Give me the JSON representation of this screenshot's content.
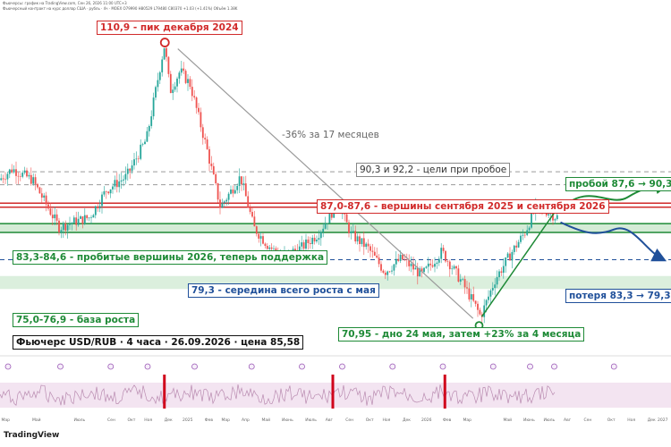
{
  "header": {
    "line1": "Фьючерсы: график на TradingView.com, Сен 26, 2026 11:00 UTC+3",
    "line2": "Фьючерсный контракт на курс доллар США · рубль · 4ч · MOEX  O79990  H80529  L79480  C80370  +1.03 (+1.41%)  Объём 1.38K"
  },
  "annotations": {
    "peak": "110,9 - пик декабря 2024",
    "drop": "-36% за 17 месяцев",
    "targets": "90,3 и 92,2 - цели при пробое",
    "resistance": "87,0-87,6 - вершины сентября 2025 и сентября 2026",
    "breakout": "пробой 87,6 → 90,3",
    "support": "83,3-84,6 - пробитые вершины 2026, теперь поддержка",
    "middle": "79,3 - середина всего роста с мая",
    "loss": "потеря 83,3 → 79,3",
    "base": "75,0-76,9 - база роста",
    "info": "Фьючерс USD/RUB · 4 часа · 26.09.2026 · цена 85,58",
    "bottom": "70,95 - дно 24 мая, затем +23% за 4 месяца"
  },
  "time_axis": [
    {
      "label": "Мар",
      "pos": 0.002
    },
    {
      "label": "Май",
      "pos": 0.048
    },
    {
      "label": "Июль",
      "pos": 0.11
    },
    {
      "label": "Сен",
      "pos": 0.16
    },
    {
      "label": "Окт",
      "pos": 0.19
    },
    {
      "label": "Ноя",
      "pos": 0.215
    },
    {
      "label": "Дек",
      "pos": 0.245
    },
    {
      "label": "2025",
      "pos": 0.272
    },
    {
      "label": "Фев",
      "pos": 0.305
    },
    {
      "label": "Мар",
      "pos": 0.33
    },
    {
      "label": "Апр",
      "pos": 0.36
    },
    {
      "label": "Май",
      "pos": 0.39
    },
    {
      "label": "Июнь",
      "pos": 0.42
    },
    {
      "label": "Июль",
      "pos": 0.455
    },
    {
      "label": "Авг",
      "pos": 0.485
    },
    {
      "label": "Сен",
      "pos": 0.515
    },
    {
      "label": "Окт",
      "pos": 0.545
    },
    {
      "label": "Ноя",
      "pos": 0.57
    },
    {
      "label": "Дек",
      "pos": 0.6
    },
    {
      "label": "2026",
      "pos": 0.628
    },
    {
      "label": "Фев",
      "pos": 0.66
    },
    {
      "label": "Мар",
      "pos": 0.69
    },
    {
      "label": "Май",
      "pos": 0.75
    },
    {
      "label": "Июнь",
      "pos": 0.78
    },
    {
      "label": "Июль",
      "pos": 0.81
    },
    {
      "label": "Авг",
      "pos": 0.84
    },
    {
      "label": "Сен",
      "pos": 0.87
    },
    {
      "label": "Окт",
      "pos": 0.905
    },
    {
      "label": "Ноя",
      "pos": 0.935
    },
    {
      "label": "Дек",
      "pos": 0.965
    },
    {
      "label": "2027",
      "pos": 0.99
    }
  ],
  "logo": "TradingView",
  "colors": {
    "red": "#d12a2a",
    "green": "#1e8a36",
    "blue": "#20509a",
    "up": "#26a69a",
    "down": "#ef5350",
    "support_zone": "#cfe9d2",
    "oscillator_band": "#f3e4f1"
  },
  "chart_data": {
    "type": "candlestick",
    "ylim": [
      69,
      111.5
    ],
    "levels": {
      "peak": 110.9,
      "target_1": 92.2,
      "target_2": 90.3,
      "resistance_low": 87.0,
      "resistance_high": 87.6,
      "support_low": 83.3,
      "support_high": 84.6,
      "middle": 79.3,
      "base_low": 75.0,
      "base_high": 76.9,
      "bottom": 70.95,
      "last_price": 85.58
    },
    "path": [
      {
        "t": 0.0,
        "v": 91.0
      },
      {
        "t": 0.02,
        "v": 92.6
      },
      {
        "t": 0.05,
        "v": 91.0
      },
      {
        "t": 0.09,
        "v": 84.0
      },
      {
        "t": 0.11,
        "v": 84.8
      },
      {
        "t": 0.135,
        "v": 85.5
      },
      {
        "t": 0.16,
        "v": 89.5
      },
      {
        "t": 0.19,
        "v": 91.5
      },
      {
        "t": 0.22,
        "v": 97.0
      },
      {
        "t": 0.242,
        "v": 108.5
      },
      {
        "t": 0.247,
        "v": 110.9
      },
      {
        "t": 0.255,
        "v": 104.0
      },
      {
        "t": 0.27,
        "v": 107.0
      },
      {
        "t": 0.285,
        "v": 105.0
      },
      {
        "t": 0.31,
        "v": 95.5
      },
      {
        "t": 0.33,
        "v": 87.0
      },
      {
        "t": 0.35,
        "v": 90.0
      },
      {
        "t": 0.36,
        "v": 91.5
      },
      {
        "t": 0.38,
        "v": 84.0
      },
      {
        "t": 0.4,
        "v": 81.5
      },
      {
        "t": 0.42,
        "v": 79.8
      },
      {
        "t": 0.45,
        "v": 81.0
      },
      {
        "t": 0.475,
        "v": 83.0
      },
      {
        "t": 0.505,
        "v": 87.6
      },
      {
        "t": 0.525,
        "v": 83.0
      },
      {
        "t": 0.55,
        "v": 81.0
      },
      {
        "t": 0.575,
        "v": 77.5
      },
      {
        "t": 0.6,
        "v": 79.5
      },
      {
        "t": 0.63,
        "v": 77.0
      },
      {
        "t": 0.66,
        "v": 80.5
      },
      {
        "t": 0.69,
        "v": 76.0
      },
      {
        "t": 0.71,
        "v": 72.5
      },
      {
        "t": 0.718,
        "v": 70.95
      },
      {
        "t": 0.74,
        "v": 76.5
      },
      {
        "t": 0.765,
        "v": 80.5
      },
      {
        "t": 0.785,
        "v": 83.5
      },
      {
        "t": 0.8,
        "v": 87.0
      },
      {
        "t": 0.815,
        "v": 86.5
      },
      {
        "t": 0.83,
        "v": 85.58
      }
    ],
    "scenarios": [
      {
        "name": "пробой 87,6 → 90,3",
        "from": 85.58,
        "to": 90.3
      },
      {
        "name": "потеря 83,3 → 79,3",
        "from": 85.58,
        "to": 79.3
      }
    ]
  }
}
